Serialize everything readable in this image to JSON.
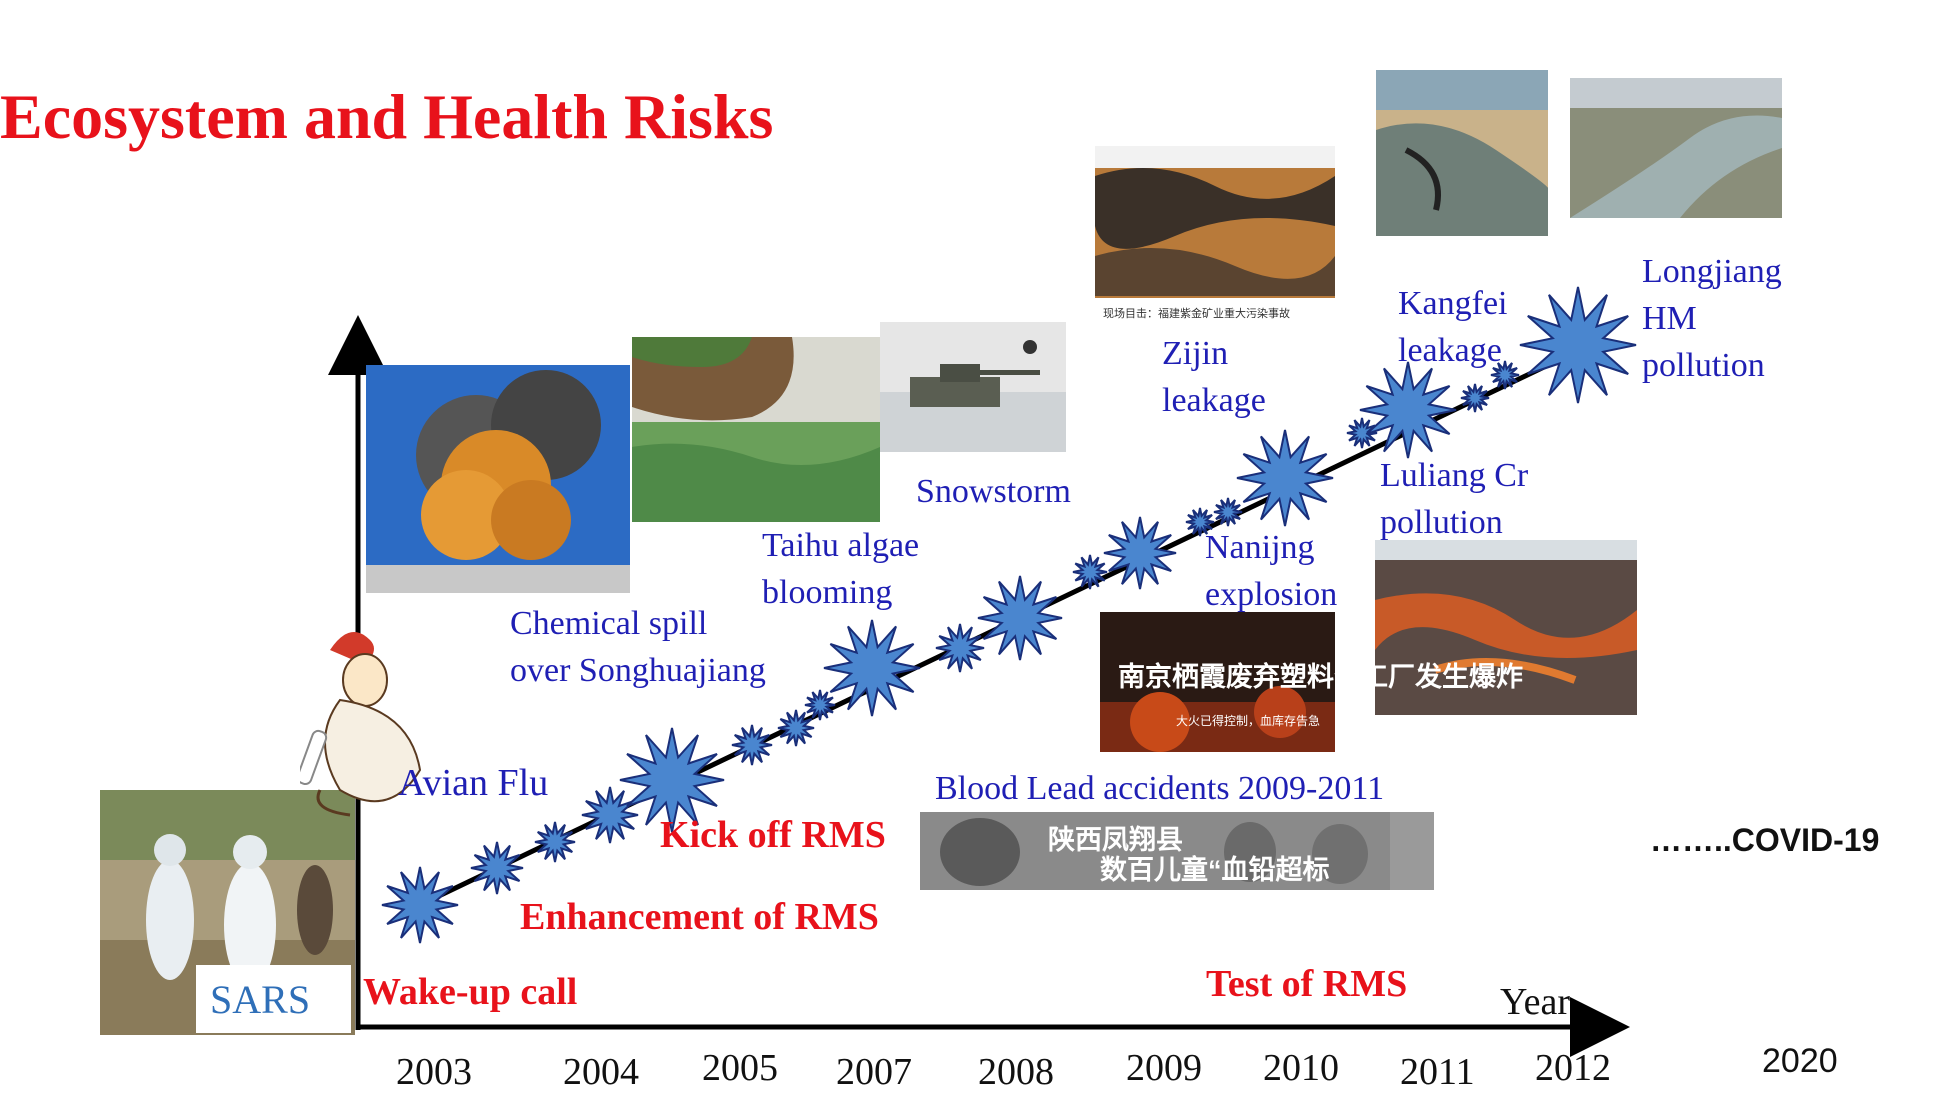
{
  "title": "Ecosystem and Health Risks",
  "axis": {
    "x_label": "Year"
  },
  "years": [
    "2003",
    "2004",
    "2005",
    "2007",
    "2008",
    "2009",
    "2010",
    "2011",
    "2012",
    "2020"
  ],
  "events": {
    "sars": "SARS",
    "avian_flu": "Avian Flu",
    "chemical_spill": [
      "Chemical spill",
      "over Songhuajiang"
    ],
    "taihu": [
      "Taihu algae",
      "blooming"
    ],
    "snowstorm": "Snowstorm",
    "zijin": [
      "Zijin",
      "leakage"
    ],
    "nanjing": [
      "Nanijng",
      "explosion"
    ],
    "kangfei": [
      "Kangfei",
      "leakage"
    ],
    "longjiang": [
      "Longjiang",
      "HM",
      "pollution"
    ],
    "luliang": [
      "Luliang Cr",
      "pollution"
    ],
    "blood_lead": "Blood Lead accidents 2009-2011",
    "covid": "……..COVID-19"
  },
  "milestones": {
    "wake_up": "Wake-up call",
    "enhancement": "Enhancement of RMS",
    "kick_off": "Kick off RMS",
    "test": "Test of  RMS"
  },
  "photo_captions": {
    "zijin_caption": "现场目击：福建紫金矿业重大污染事故",
    "nanjing_banner": "南京栖霞废弃塑料化工厂发生爆炸",
    "nanjing_sub": "大火已得控制，血库存告急",
    "blood_lead_banner_1": "陕西凤翔县",
    "blood_lead_banner_2": "数百儿童“血铅超标"
  },
  "colors": {
    "title": "#e8121b",
    "event_text": "#1f1fb4",
    "milestone_text": "#e8121b",
    "star_fill": "#4a86cf",
    "star_stroke": "#1a2f7a",
    "sars_text": "#2f6fb8"
  }
}
